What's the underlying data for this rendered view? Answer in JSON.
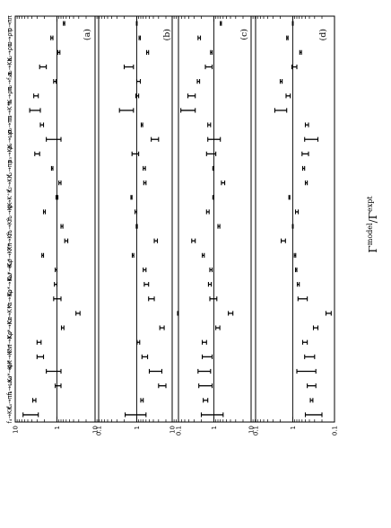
{
  "chart_data": {
    "type": "errorbar",
    "scale": "log",
    "axis_range": [
      0.1,
      10
    ],
    "reference_line": 1,
    "ticks": [
      {
        "value": 0.1,
        "label": "0.1"
      },
      {
        "value": 1,
        "label": "1"
      },
      {
        "value": 10,
        "label": "10"
      }
    ],
    "categories": [
      "ρ→ππ",
      "ω→ρπ",
      "a₂→ρπ",
      "a₂→KK",
      "π₂→f₂π",
      "π₂→ρπ",
      "π₂→K*K",
      "ρ₃→ππ",
      "ρ₃→ωπ",
      "ρ₃→KK",
      "f₂→ππ",
      "f₂→KK",
      "φ→K⁺K⁻",
      "f′₂→KK",
      "f′₂→Kπ",
      "K*→Kπ",
      "K₂*→K*π",
      "K₂*→Kρ",
      "K₂*→Kω",
      "K₁→Kρ",
      "K₁→K*π",
      "K₃*→Kπ",
      "K₃*→Kρ",
      "K₃*→K*π",
      "K₃*→φK",
      "f₄→ωω",
      "f₄→ππ",
      "f₄→KK"
    ],
    "panels": [
      {
        "label": "(a)",
        "ratios": [
          [
            0.65,
            0.7
          ],
          [
            1.25,
            1.4
          ],
          [
            0.85,
            0.95
          ],
          [
            1.8,
            2.6
          ],
          [
            1.05,
            1.2
          ],
          [
            2.8,
            3.6
          ],
          [
            2.5,
            4.5
          ],
          [
            2.1,
            2.5
          ],
          [
            0.8,
            1.8
          ],
          [
            2.6,
            3.4
          ],
          [
            1.25,
            1.35
          ],
          [
            0.8,
            0.9
          ],
          [
            0.95,
            1.05
          ],
          [
            1.9,
            2.1
          ],
          [
            0.72,
            0.8
          ],
          [
            0.55,
            0.65
          ],
          [
            2.1,
            2.3
          ],
          [
            1.0,
            1.1
          ],
          [
            1.0,
            1.15
          ],
          [
            0.8,
            1.2
          ],
          [
            0.28,
            0.35
          ],
          [
            0.68,
            0.78
          ],
          [
            2.4,
            3.0
          ],
          [
            2.1,
            3.0
          ],
          [
            0.8,
            1.8
          ],
          [
            0.8,
            1.1
          ],
          [
            3.2,
            3.8
          ],
          [
            2.8,
            6.5
          ]
        ]
      },
      {
        "label": "(b)",
        "ratios": [
          [
            0.98,
            1.02
          ],
          [
            0.82,
            0.88
          ],
          [
            0.52,
            0.58
          ],
          [
            1.2,
            2.0
          ],
          [
            0.82,
            1.0
          ],
          [
            0.9,
            1.05
          ],
          [
            1.2,
            2.6
          ],
          [
            0.72,
            0.78
          ],
          [
            0.3,
            0.45
          ],
          [
            0.9,
            1.3
          ],
          [
            0.62,
            0.7
          ],
          [
            0.6,
            0.68
          ],
          [
            1.3,
            1.38
          ],
          [
            1.0,
            1.1
          ],
          [
            0.97,
            1.03
          ],
          [
            0.32,
            0.38
          ],
          [
            1.18,
            1.28
          ],
          [
            0.6,
            0.7
          ],
          [
            0.52,
            0.66
          ],
          [
            0.38,
            0.52
          ],
          [
            0.1,
            0.105
          ],
          [
            0.22,
            0.28
          ],
          [
            0.85,
            0.98
          ],
          [
            0.55,
            0.75
          ],
          [
            0.25,
            0.5
          ],
          [
            0.2,
            0.3
          ],
          [
            0.7,
            0.8
          ],
          [
            0.6,
            1.9
          ]
        ]
      },
      {
        "label": "(c)",
        "ratios": [
          [
            0.66,
            0.7
          ],
          [
            2.1,
            2.4
          ],
          [
            1.1,
            1.2
          ],
          [
            1.1,
            1.6
          ],
          [
            2.2,
            2.5
          ],
          [
            2.8,
            4.2
          ],
          [
            2.8,
            6.2
          ],
          [
            1.2,
            1.4
          ],
          [
            0.7,
            1.4
          ],
          [
            0.9,
            1.5
          ],
          [
            1.0,
            1.06
          ],
          [
            0.55,
            0.66
          ],
          [
            1.0,
            1.06
          ],
          [
            1.3,
            1.5
          ],
          [
            0.72,
            0.8
          ],
          [
            2.8,
            3.4
          ],
          [
            1.7,
            1.9
          ],
          [
            1.1,
            1.25
          ],
          [
            1.15,
            1.35
          ],
          [
            0.85,
            1.25
          ],
          [
            0.35,
            0.45
          ],
          [
            0.72,
            0.9
          ],
          [
            1.5,
            1.9
          ],
          [
            1.1,
            1.9
          ],
          [
            1.2,
            2.4
          ],
          [
            1.1,
            2.3
          ],
          [
            1.4,
            1.8
          ],
          [
            0.6,
            2.0
          ]
        ]
      },
      {
        "label": "(d)",
        "ratios": [
          [
            0.98,
            1.02
          ],
          [
            1.3,
            1.4
          ],
          [
            0.62,
            0.68
          ],
          [
            0.8,
            1.05
          ],
          [
            1.8,
            2.0
          ],
          [
            1.15,
            1.45
          ],
          [
            1.4,
            2.7
          ],
          [
            0.42,
            0.5
          ],
          [
            0.25,
            0.52
          ],
          [
            0.42,
            0.6
          ],
          [
            0.52,
            0.58
          ],
          [
            0.45,
            0.5
          ],
          [
            1.18,
            1.24
          ],
          [
            0.74,
            0.86
          ],
          [
            0.98,
            1.02
          ],
          [
            1.5,
            1.9
          ],
          [
            0.85,
            0.92
          ],
          [
            0.8,
            0.86
          ],
          [
            0.7,
            0.78
          ],
          [
            0.45,
            0.75
          ],
          [
            0.12,
            0.16
          ],
          [
            0.25,
            0.32
          ],
          [
            0.45,
            0.58
          ],
          [
            0.3,
            0.52
          ],
          [
            0.28,
            0.8
          ],
          [
            0.28,
            0.45
          ],
          [
            0.33,
            0.38
          ],
          [
            0.2,
            0.5
          ]
        ]
      }
    ],
    "ylabel": "Γmodel/Γexpt",
    "ylabel_parts": {
      "gamma": "Γ",
      "model_sup": "model",
      "slash": "/",
      "expt_sup": "expt"
    }
  }
}
